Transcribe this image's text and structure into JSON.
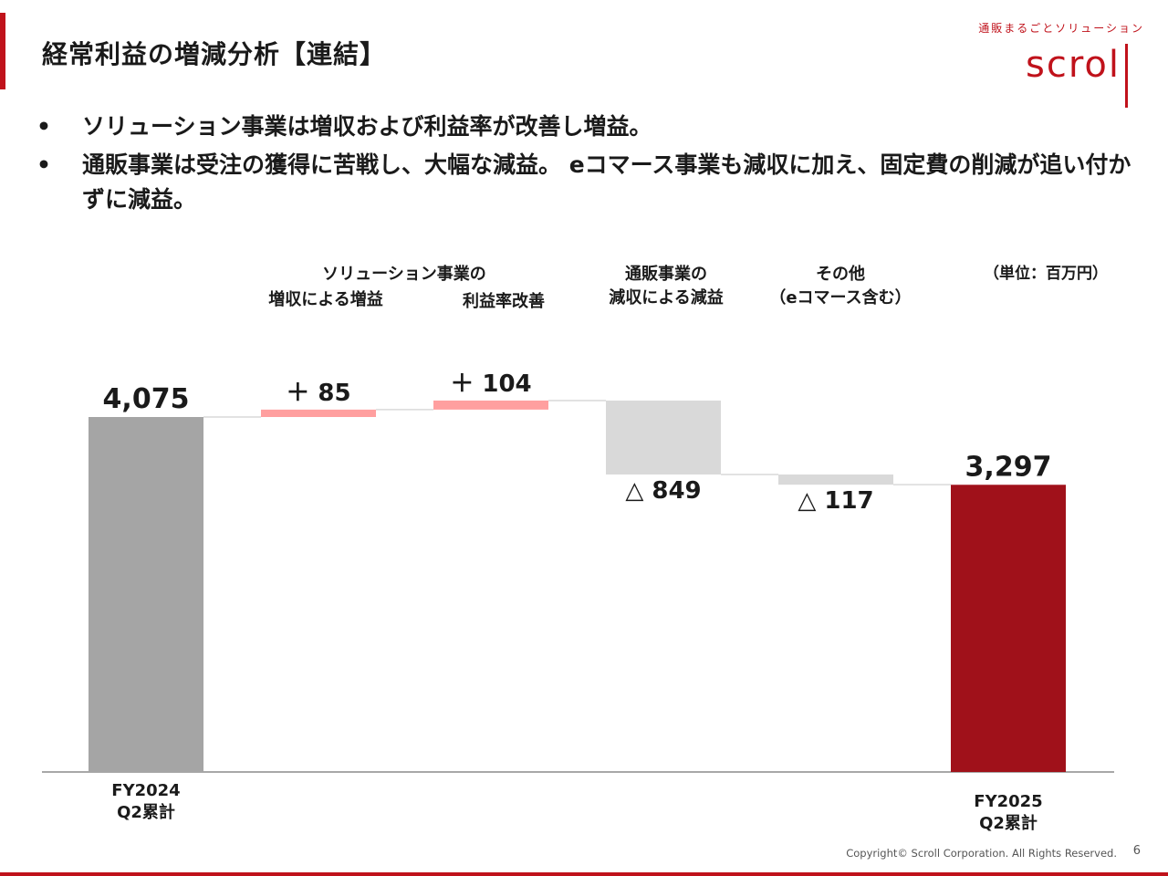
{
  "slide": {
    "title": "経常利益の増減分析【連結】",
    "page_number": "6",
    "copyright": "Copyright© Scroll Corporation. All Rights Reserved."
  },
  "logo": {
    "tagline": "通販まるごとソリューション",
    "word": "scrol"
  },
  "bullets": [
    {
      "marker": "•",
      "text": "ソリューション事業は増収および利益率が改善し増益。"
    },
    {
      "marker": "•",
      "text": "通販事業は受注の獲得に苦戦し、大幅な減益。 eコマース事業も減収に加え、固定費の削減が追い付かずに減益。"
    }
  ],
  "unit_label": "（単位：百万円）",
  "chart_data": {
    "type": "waterfall",
    "unit": "百万円",
    "ylim": [
      0,
      4075
    ],
    "headers": [
      {
        "lines": [
          "ソリューション事業の"
        ],
        "anchor": "solution"
      },
      {
        "lines": [
          "通販事業の",
          "減収による減益"
        ],
        "anchor": "mailorder"
      },
      {
        "lines": [
          "その他",
          "（eコマース含む）"
        ],
        "anchor": "other"
      }
    ],
    "steps": [
      {
        "key": "start",
        "kind": "total",
        "value": 4075,
        "label": "4,075",
        "category": [
          "FY2024",
          "Q2累計"
        ],
        "color": "#a5a5a5"
      },
      {
        "key": "sol_rev",
        "kind": "delta",
        "value": 85,
        "label": "＋ 85",
        "category": [
          "増収による増益"
        ],
        "color": "#ff9f9f"
      },
      {
        "key": "sol_margin",
        "kind": "delta",
        "value": 104,
        "label": "＋ 104",
        "category": [
          "利益率改善"
        ],
        "color": "#ff9f9f"
      },
      {
        "key": "mailorder",
        "kind": "delta",
        "value": -849,
        "label": "△ 849",
        "category": [],
        "color": "#d9d9d9"
      },
      {
        "key": "other",
        "kind": "delta",
        "value": -117,
        "label": "△ 117",
        "category": [],
        "color": "#d9d9d9"
      },
      {
        "key": "end",
        "kind": "total",
        "value": 3297,
        "label": "3,297",
        "category": [
          "FY2025",
          "Q2累計"
        ],
        "color": "#a0111a"
      }
    ]
  }
}
